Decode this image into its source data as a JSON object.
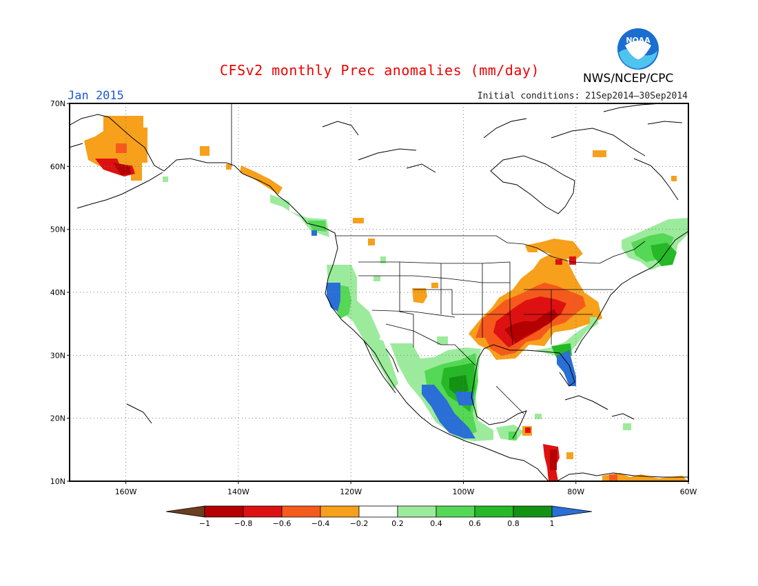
{
  "title": "CFSv2 monthly Prec anomalies (mm/day)",
  "period": "Jan 2015",
  "initial_conditions": "Initial conditions: 21Sep2014–30Sep2014",
  "agency": "NWS/NCEP/CPC",
  "logo_text": "NOAA",
  "map": {
    "lon_range": [
      -170,
      -60
    ],
    "lat_range": [
      10,
      70
    ],
    "lat_ticks": [
      "10N",
      "20N",
      "30N",
      "40N",
      "50N",
      "60N",
      "70N"
    ],
    "lon_ticks": [
      "160W",
      "140W",
      "120W",
      "100W",
      "80W",
      "60W"
    ],
    "grid": "dotted"
  },
  "colorbar": {
    "labels": [
      "−1",
      "−0.8",
      "−0.6",
      "−0.4",
      "−0.2",
      "0.2",
      "0.4",
      "0.6",
      "0.8",
      "1"
    ],
    "bins": [
      {
        "range": "< -1",
        "color": "#6b3e1f"
      },
      {
        "range": "-1 to -0.8",
        "color": "#b50000"
      },
      {
        "range": "-0.8 to -0.6",
        "color": "#dd1111"
      },
      {
        "range": "-0.6 to -0.4",
        "color": "#f55a1c"
      },
      {
        "range": "-0.4 to -0.2",
        "color": "#f7a01c"
      },
      {
        "range": "-0.2 to 0.2",
        "color": "#ffffff"
      },
      {
        "range": "0.2 to 0.4",
        "color": "#9ceb9c"
      },
      {
        "range": "0.4 to 0.6",
        "color": "#55d855"
      },
      {
        "range": "0.6 to 0.8",
        "color": "#26b826"
      },
      {
        "range": "0.8 to 1",
        "color": "#139213"
      },
      {
        "range": "> 1",
        "color": "#2a6fd6"
      }
    ]
  },
  "anomaly_regions": [
    {
      "region": "Southwest Alaska",
      "category": "-0.4 to -0.2"
    },
    {
      "region": "Alaska Peninsula",
      "category": "-0.8 to -0.6"
    },
    {
      "region": "Southeast Alaska",
      "category": "-0.4 to -0.2"
    },
    {
      "region": "Ohio/Tennessee Valley",
      "category": "-0.8 to -0.6"
    },
    {
      "region": "Central Gulf Coast",
      "category": "-1 to -0.8"
    },
    {
      "region": "Great Lakes",
      "category": "-0.4 to -0.2"
    },
    {
      "region": "Colorado",
      "category": "-0.4 to -0.2"
    },
    {
      "region": "Northern California coast",
      "category": "> 1"
    },
    {
      "region": "California",
      "category": "0.4 to 0.6"
    },
    {
      "region": "Baja California",
      "category": "0.2 to 0.4"
    },
    {
      "region": "West-central Mexico",
      "category": "> 1"
    },
    {
      "region": "Central Mexico",
      "category": "0.6 to 0.8"
    },
    {
      "region": "South Texas",
      "category": "0.4 to 0.6"
    },
    {
      "region": "Florida",
      "category": "> 1"
    },
    {
      "region": "Atlantic Canada",
      "category": "0.6 to 0.8"
    },
    {
      "region": "Honduras/Nicaragua",
      "category": "-0.8 to -0.6"
    },
    {
      "region": "Northern Venezuela",
      "category": "-0.6 to -0.4"
    }
  ]
}
